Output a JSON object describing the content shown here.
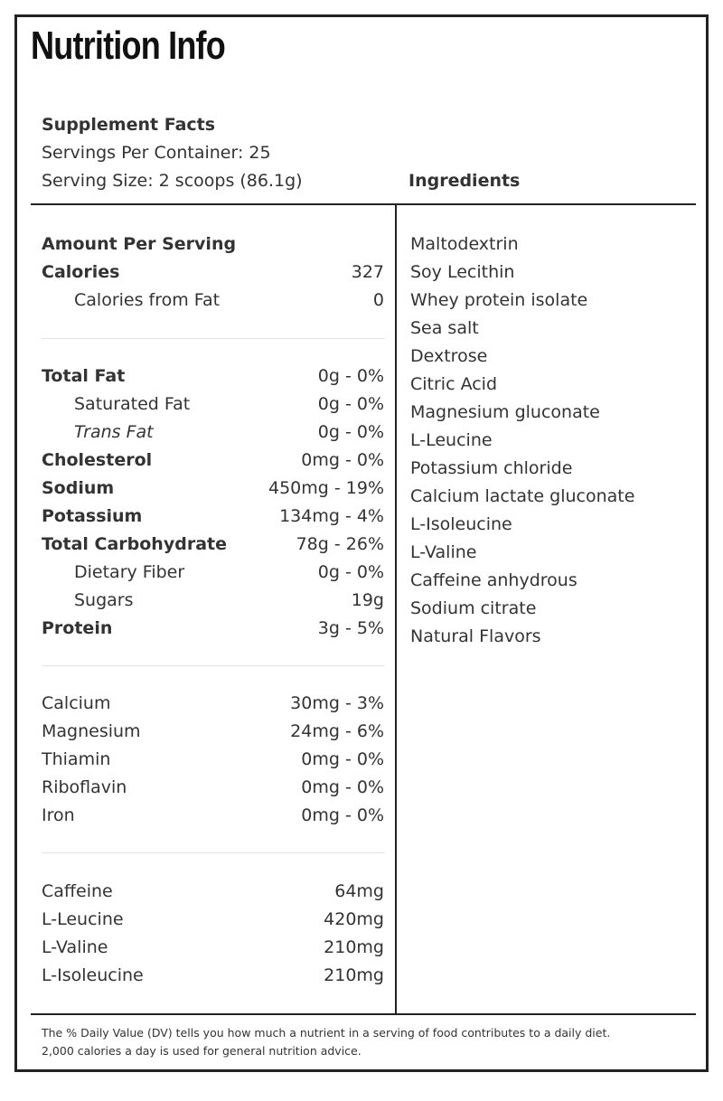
{
  "title": "Nutrition Info",
  "facts": {
    "heading": "Supplement Facts",
    "servings_per_container": "Servings Per Container: 25",
    "serving_size": "Serving Size: 2 scoops (86.1g)",
    "amount_per_serving": "Amount Per Serving",
    "calories": {
      "label": "Calories",
      "value": "327"
    },
    "calories_from_fat": {
      "label": "Calories from Fat",
      "value": "0"
    },
    "group1": [
      {
        "label": "Total Fat",
        "value": "0g - 0%"
      },
      {
        "label": "Saturated Fat",
        "value": "0g - 0%"
      },
      {
        "label": "Trans Fat",
        "value": "0g - 0%"
      },
      {
        "label": "Cholesterol",
        "value": "0mg - 0%"
      },
      {
        "label": "Sodium",
        "value": "450mg - 19%"
      },
      {
        "label": "Potassium",
        "value": "134mg - 4%"
      },
      {
        "label": "Total Carbohydrate",
        "value": "78g - 26%"
      },
      {
        "label": "Dietary Fiber",
        "value": "0g - 0%"
      },
      {
        "label": "Sugars",
        "value": "19g"
      },
      {
        "label": "Protein",
        "value": "3g - 5%"
      }
    ],
    "group2": [
      {
        "label": "Calcium",
        "value": "30mg - 3%"
      },
      {
        "label": "Magnesium",
        "value": "24mg - 6%"
      },
      {
        "label": "Thiamin",
        "value": "0mg - 0%"
      },
      {
        "label": "Riboflavin",
        "value": "0mg - 0%"
      },
      {
        "label": "Iron",
        "value": "0mg - 0%"
      }
    ],
    "group3": [
      {
        "label": "Caffeine",
        "value": "64mg"
      },
      {
        "label": "L-Leucine",
        "value": "420mg"
      },
      {
        "label": "L-Valine",
        "value": "210mg"
      },
      {
        "label": "L-Isoleucine",
        "value": "210mg"
      }
    ]
  },
  "ingredients": {
    "heading": "Ingredients",
    "items": [
      "Maltodextrin",
      "Soy Lecithin",
      "Whey protein isolate",
      "Sea salt",
      "Dextrose",
      "Citric Acid",
      "Magnesium gluconate",
      "L-Leucine",
      "Potassium chloride",
      "Calcium lactate gluconate",
      "L-Isoleucine",
      "L-Valine",
      "Caffeine anhydrous",
      "Sodium citrate",
      "Natural Flavors"
    ]
  },
  "footnote": {
    "line1": "The % Daily Value (DV) tells you how much a nutrient in a serving of food contributes to a daily diet.",
    "line2": "2,000 calories a day is used for general nutrition advice."
  }
}
